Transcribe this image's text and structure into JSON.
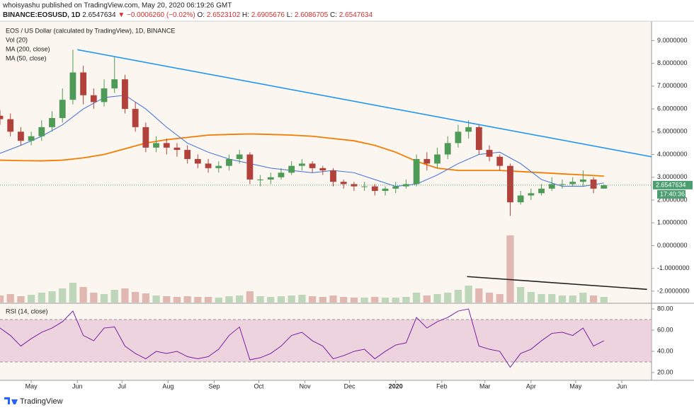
{
  "header": {
    "author": "whoisyashu published on TradingView.com, May 20, 2020 06:19:26 GMT",
    "symbol": "BINANCE:EOSUSD, 1D",
    "last": "2.6547634",
    "change": "▼ −0.0006260 (−0.02%)",
    "ohlc": [
      {
        "key": "O:",
        "value": "2.6523102"
      },
      {
        "key": "H:",
        "value": "2.6905676"
      },
      {
        "key": "L:",
        "value": "2.6086705"
      },
      {
        "key": "C:",
        "value": "2.6547634"
      }
    ]
  },
  "footer": {
    "brand": "TradingView"
  },
  "chart_data": [
    {
      "type": "candlestick",
      "title": "EOS / US Dollar (calculated by TradingView), 1D, BINANCE",
      "up_color": "#4e9a57",
      "down_color": "#b2413c",
      "x": [
        0,
        7,
        14,
        21,
        28,
        35,
        42,
        49,
        56,
        63,
        70,
        77,
        84,
        91,
        98,
        105,
        112,
        119,
        126,
        133,
        140,
        147,
        154,
        161,
        168,
        175,
        182,
        189,
        196,
        203,
        210,
        217,
        224,
        231,
        238,
        245,
        252,
        259,
        266,
        273,
        280,
        287,
        294,
        301,
        308,
        315,
        322,
        329,
        336,
        343,
        350,
        357,
        364,
        371,
        378,
        385,
        392,
        399,
        406
      ],
      "open": [
        5.7,
        5.55,
        5.0,
        4.6,
        4.8,
        5.2,
        5.6,
        6.4,
        7.6,
        6.6,
        6.3,
        6.9,
        7.3,
        6.0,
        5.2,
        4.3,
        4.5,
        4.3,
        4.2,
        3.8,
        3.6,
        3.4,
        3.5,
        3.8,
        4.0,
        2.9,
        2.9,
        3.0,
        3.2,
        3.5,
        3.6,
        3.4,
        3.3,
        2.8,
        2.7,
        2.6,
        2.6,
        2.4,
        2.5,
        2.6,
        2.7,
        3.8,
        3.6,
        4.0,
        4.5,
        5.0,
        5.2,
        4.2,
        3.9,
        3.5,
        1.9,
        2.2,
        2.3,
        2.5,
        2.7,
        2.7,
        2.8,
        2.9,
        2.5
      ],
      "high": [
        5.95,
        5.8,
        5.2,
        5.0,
        5.5,
        5.9,
        6.9,
        8.6,
        7.9,
        6.9,
        7.3,
        8.3,
        7.5,
        6.3,
        5.4,
        4.8,
        4.7,
        4.5,
        4.4,
        4.0,
        3.8,
        3.7,
        4.0,
        4.2,
        4.1,
        3.1,
        3.2,
        3.4,
        3.7,
        3.8,
        3.7,
        3.5,
        3.4,
        2.9,
        2.8,
        2.8,
        2.7,
        2.6,
        2.8,
        2.9,
        4.0,
        4.1,
        4.3,
        4.8,
        5.3,
        5.5,
        5.3,
        4.4,
        4.0,
        3.6,
        2.4,
        2.5,
        2.7,
        3.0,
        2.9,
        3.0,
        3.3,
        3.0,
        2.69
      ],
      "low": [
        5.3,
        4.8,
        4.4,
        4.4,
        4.6,
        5.0,
        5.4,
        6.2,
        6.2,
        6.0,
        6.1,
        6.7,
        5.8,
        5.0,
        4.1,
        4.1,
        4.0,
        3.9,
        3.6,
        3.4,
        3.2,
        3.2,
        3.3,
        3.6,
        2.7,
        2.6,
        2.7,
        2.9,
        3.1,
        3.3,
        3.2,
        3.1,
        2.6,
        2.5,
        2.4,
        2.4,
        2.2,
        2.2,
        2.3,
        2.5,
        2.6,
        3.3,
        3.4,
        3.8,
        4.3,
        4.7,
        4.0,
        3.7,
        3.3,
        1.3,
        1.8,
        2.0,
        2.2,
        2.4,
        2.5,
        2.6,
        2.6,
        2.3,
        2.61
      ],
      "close": [
        5.55,
        5.0,
        4.6,
        4.8,
        5.2,
        5.6,
        6.4,
        7.6,
        6.6,
        6.3,
        6.9,
        7.3,
        6.0,
        5.2,
        4.3,
        4.5,
        4.3,
        4.2,
        3.8,
        3.6,
        3.4,
        3.5,
        3.8,
        4.0,
        2.9,
        2.9,
        3.0,
        3.2,
        3.5,
        3.6,
        3.4,
        3.3,
        2.8,
        2.7,
        2.6,
        2.6,
        2.4,
        2.5,
        2.6,
        2.7,
        3.8,
        3.6,
        4.0,
        4.5,
        5.0,
        5.2,
        4.2,
        3.9,
        3.5,
        1.9,
        2.2,
        2.3,
        2.5,
        2.7,
        2.7,
        2.8,
        2.9,
        2.5,
        2.65
      ],
      "volume": {
        "name": "Vol (20)",
        "vlim": [
          0,
          100
        ],
        "values": [
          10,
          12,
          9,
          11,
          14,
          16,
          20,
          28,
          22,
          14,
          12,
          18,
          20,
          15,
          13,
          10,
          9,
          8,
          9,
          8,
          8,
          7,
          9,
          10,
          16,
          9,
          8,
          9,
          10,
          11,
          9,
          8,
          10,
          8,
          7,
          7,
          8,
          7,
          7,
          8,
          14,
          10,
          12,
          14,
          18,
          24,
          20,
          14,
          12,
          95,
          22,
          15,
          12,
          12,
          10,
          10,
          14,
          10,
          8
        ]
      },
      "series": [
        {
          "name": "MA (200, close)",
          "color": "#f57c00",
          "x": [
            0,
            14,
            28,
            42,
            56,
            70,
            84,
            98,
            112,
            126,
            140,
            154,
            168,
            182,
            196,
            210,
            224,
            238,
            252,
            266,
            280,
            294,
            308,
            322,
            336,
            350,
            364,
            378,
            392,
            406
          ],
          "values": [
            3.75,
            3.73,
            3.72,
            3.75,
            3.85,
            4.0,
            4.25,
            4.5,
            4.65,
            4.75,
            4.85,
            4.88,
            4.9,
            4.88,
            4.85,
            4.8,
            4.7,
            4.6,
            4.4,
            4.1,
            3.7,
            3.4,
            3.3,
            3.3,
            3.3,
            3.25,
            3.2,
            3.15,
            3.1,
            3.05
          ]
        },
        {
          "name": "MA (50, close)",
          "color": "#3d6fd9",
          "x": [
            0,
            14,
            28,
            42,
            56,
            70,
            84,
            98,
            112,
            126,
            140,
            154,
            168,
            182,
            196,
            210,
            224,
            238,
            252,
            266,
            280,
            294,
            308,
            322,
            336,
            350,
            364,
            378,
            392,
            406
          ],
          "values": [
            4.05,
            4.4,
            4.8,
            5.3,
            6.0,
            6.5,
            6.6,
            6.0,
            5.2,
            4.5,
            4.1,
            3.8,
            3.6,
            3.4,
            3.3,
            3.2,
            3.3,
            3.2,
            2.9,
            2.6,
            2.7,
            3.1,
            3.6,
            4.0,
            4.1,
            3.6,
            2.9,
            2.6,
            2.6,
            2.75
          ]
        }
      ],
      "trendlines": [
        {
          "color": "#2196f3",
          "x": [
            52,
            438
          ],
          "values": [
            8.6,
            3.9
          ]
        },
        {
          "color": "#222222",
          "x": [
            314,
            435
          ],
          "values": [
            -1.36,
            -1.92
          ]
        }
      ],
      "last_price": {
        "value": 2.6547634,
        "label": "2.6547634",
        "color": "#4a9e6f"
      },
      "countdown": "17:40:36",
      "xlim": [
        0,
        438
      ],
      "xticks": [
        {
          "value": 21,
          "label": "May"
        },
        {
          "value": 52,
          "label": "Jun"
        },
        {
          "value": 82,
          "label": "Jul"
        },
        {
          "value": 113,
          "label": "Aug"
        },
        {
          "value": 144,
          "label": "Sep"
        },
        {
          "value": 174,
          "label": "Oct"
        },
        {
          "value": 205,
          "label": "Nov"
        },
        {
          "value": 235,
          "label": "Dec"
        },
        {
          "value": 266,
          "label": "2020"
        },
        {
          "value": 297,
          "label": "Feb"
        },
        {
          "value": 326,
          "label": "Mar"
        },
        {
          "value": 357,
          "label": "Apr"
        },
        {
          "value": 387,
          "label": "May"
        },
        {
          "value": 418,
          "label": "Jun"
        }
      ],
      "ylim": [
        -2.5,
        9.85
      ],
      "yticks": [
        {
          "value": 9,
          "label": "9.0000000"
        },
        {
          "value": 8,
          "label": "8.0000000"
        },
        {
          "value": 7,
          "label": "7.0000000"
        },
        {
          "value": 6,
          "label": "6.0000000"
        },
        {
          "value": 5,
          "label": "5.0000000"
        },
        {
          "value": 4,
          "label": "4.0000000"
        },
        {
          "value": 3,
          "label": "3.0000000"
        },
        {
          "value": 2,
          "label": "2.0000000"
        },
        {
          "value": 1,
          "label": "1.0000000"
        },
        {
          "value": 0,
          "label": "0.0000000"
        },
        {
          "value": -1,
          "label": "-1.0000000"
        },
        {
          "value": -2,
          "label": "-2.0000000"
        }
      ]
    },
    {
      "type": "line",
      "title": "RSI (14, close)",
      "color": "#7b1fa2",
      "band_color": "#e6c3d6",
      "x": [
        0,
        7,
        14,
        21,
        28,
        35,
        42,
        49,
        56,
        63,
        70,
        77,
        84,
        91,
        98,
        105,
        112,
        119,
        126,
        133,
        140,
        147,
        154,
        161,
        168,
        175,
        182,
        189,
        196,
        203,
        210,
        217,
        224,
        231,
        238,
        245,
        252,
        259,
        266,
        273,
        280,
        287,
        294,
        301,
        308,
        315,
        322,
        329,
        336,
        343,
        350,
        357,
        364,
        371,
        378,
        385,
        392,
        399,
        406
      ],
      "values": [
        62,
        55,
        45,
        52,
        58,
        62,
        68,
        78,
        55,
        50,
        62,
        63,
        45,
        38,
        33,
        40,
        38,
        40,
        35,
        33,
        35,
        42,
        55,
        63,
        32,
        34,
        38,
        45,
        55,
        58,
        50,
        45,
        33,
        36,
        40,
        42,
        33,
        40,
        46,
        48,
        72,
        62,
        68,
        72,
        78,
        80,
        45,
        42,
        40,
        25,
        38,
        42,
        50,
        57,
        58,
        55,
        62,
        45,
        50
      ],
      "levels": [
        30,
        70
      ],
      "xlim": [
        0,
        438
      ],
      "ylim": [
        12.7,
        84.7
      ],
      "yticks": [
        {
          "value": 80,
          "label": "80.00"
        },
        {
          "value": 60,
          "label": "60.00"
        },
        {
          "value": 40,
          "label": "40.00"
        },
        {
          "value": 20,
          "label": "20.00"
        }
      ]
    }
  ]
}
